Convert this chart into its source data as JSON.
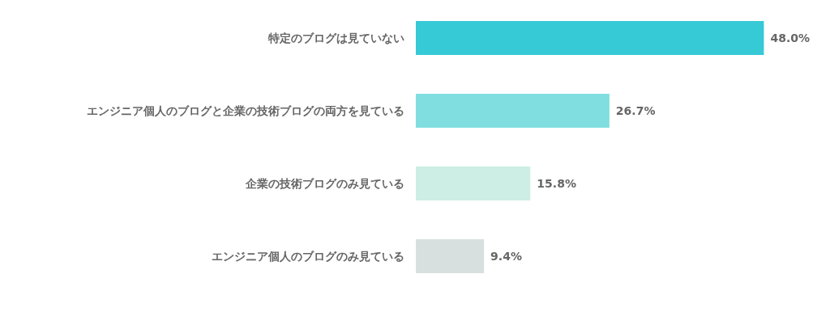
{
  "chart_data": {
    "type": "bar",
    "orientation": "horizontal",
    "categories": [
      "特定のブログは見ていない",
      "エンジニア個人のブログと企業の技術ブログの両方を見ている",
      "企業の技術ブログのみ見ている",
      "エンジニア個人のブログのみ見ている"
    ],
    "values": [
      48.0,
      26.7,
      15.8,
      9.4
    ],
    "colors": [
      "#36c9d6",
      "#80dee0",
      "#cdeee4",
      "#d7dfdf"
    ],
    "value_labels": [
      "48.0%",
      "26.7%",
      "15.8%",
      "9.4%"
    ],
    "grid": false
  }
}
